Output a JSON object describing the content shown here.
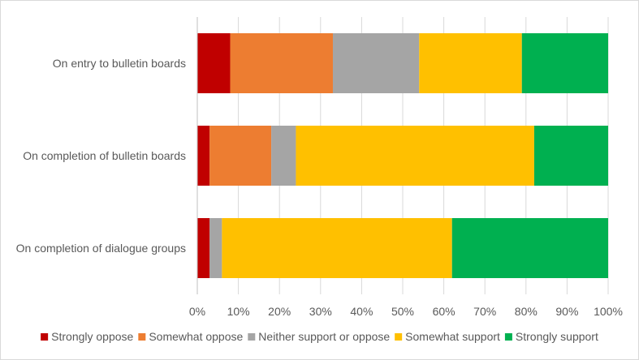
{
  "chart_data": {
    "type": "bar",
    "orientation": "horizontal",
    "stacked": "percent",
    "title": "",
    "xlabel": "",
    "ylabel": "",
    "xlim": [
      0,
      100
    ],
    "x_ticks": [
      "0%",
      "10%",
      "20%",
      "30%",
      "40%",
      "50%",
      "60%",
      "70%",
      "80%",
      "90%",
      "100%"
    ],
    "grid": true,
    "legend_position": "bottom",
    "categories": [
      "On entry to bulletin boards",
      "On completion of bulletin boards",
      "On completion of dialogue groups"
    ],
    "series": [
      {
        "name": "Strongly oppose",
        "color": "#c00000",
        "values": [
          8,
          3,
          3
        ]
      },
      {
        "name": "Somewhat oppose",
        "color": "#ed7d31",
        "values": [
          25,
          15,
          0
        ]
      },
      {
        "name": "Neither support or oppose",
        "color": "#a5a5a5",
        "values": [
          21,
          6,
          3
        ]
      },
      {
        "name": "Somewhat support",
        "color": "#ffc000",
        "values": [
          25,
          58,
          56
        ]
      },
      {
        "name": "Strongly support",
        "color": "#00b050",
        "values": [
          21,
          18,
          38
        ]
      }
    ]
  }
}
